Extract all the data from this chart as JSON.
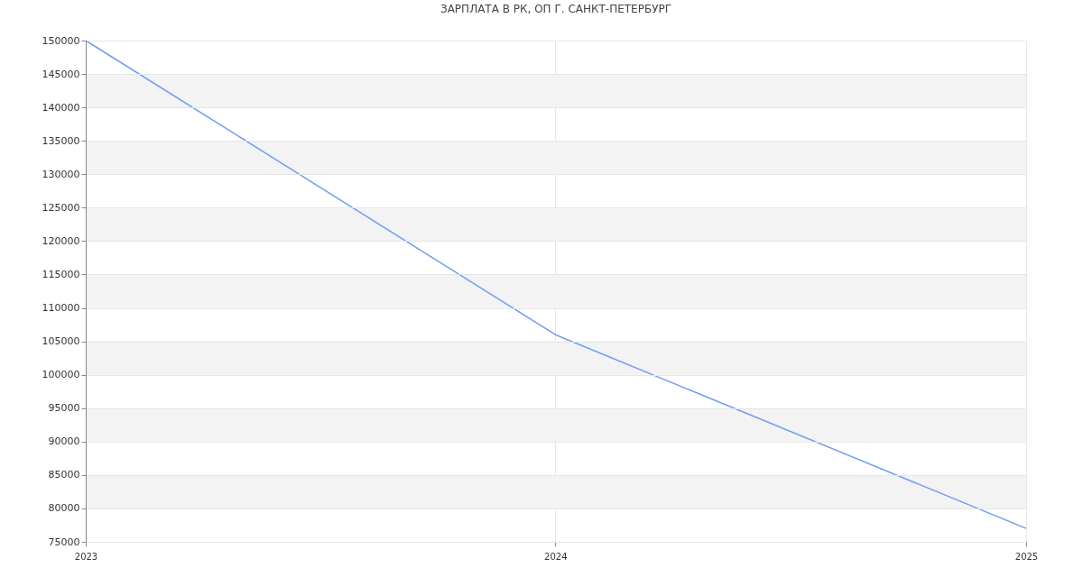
{
  "chart_data": {
    "type": "line",
    "title": "ЗАРПЛАТА В РК, ОП Г. САНКТ-ПЕТЕРБУРГ",
    "x": [
      "2023",
      "2024",
      "2025"
    ],
    "series": [
      {
        "color": "#6f9cf4",
        "values": [
          150000,
          106000,
          77000
        ]
      }
    ],
    "xlim": [
      "2023",
      "2025"
    ],
    "xticks": [
      "2023",
      "2024",
      "2025"
    ],
    "ylim": [
      75000,
      150000
    ],
    "yticks": [
      75000,
      80000,
      85000,
      90000,
      95000,
      100000,
      105000,
      110000,
      115000,
      120000,
      125000,
      130000,
      135000,
      140000,
      145000,
      150000
    ],
    "grid": true,
    "marker": "none",
    "line_style": "solid"
  }
}
